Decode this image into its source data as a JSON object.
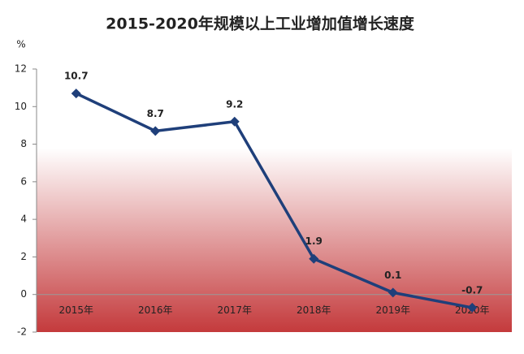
{
  "chart_data": {
    "type": "line",
    "title": "2015-2020年规模以上工业增加值增长速度",
    "y_label": "%",
    "categories": [
      "2015年",
      "2016年",
      "2017年",
      "2018年",
      "2019年",
      "2020年"
    ],
    "series": [
      {
        "name": "增长速度",
        "color": "#1f3f7a",
        "values": [
          10.7,
          8.7,
          9.2,
          1.9,
          0.1,
          -0.7
        ]
      }
    ],
    "ylim": [
      -2,
      12
    ],
    "yticks": [
      -2,
      0,
      2,
      4,
      6,
      8,
      10,
      12
    ],
    "gradient": [
      "#ffffff",
      "#c43a3c"
    ]
  }
}
